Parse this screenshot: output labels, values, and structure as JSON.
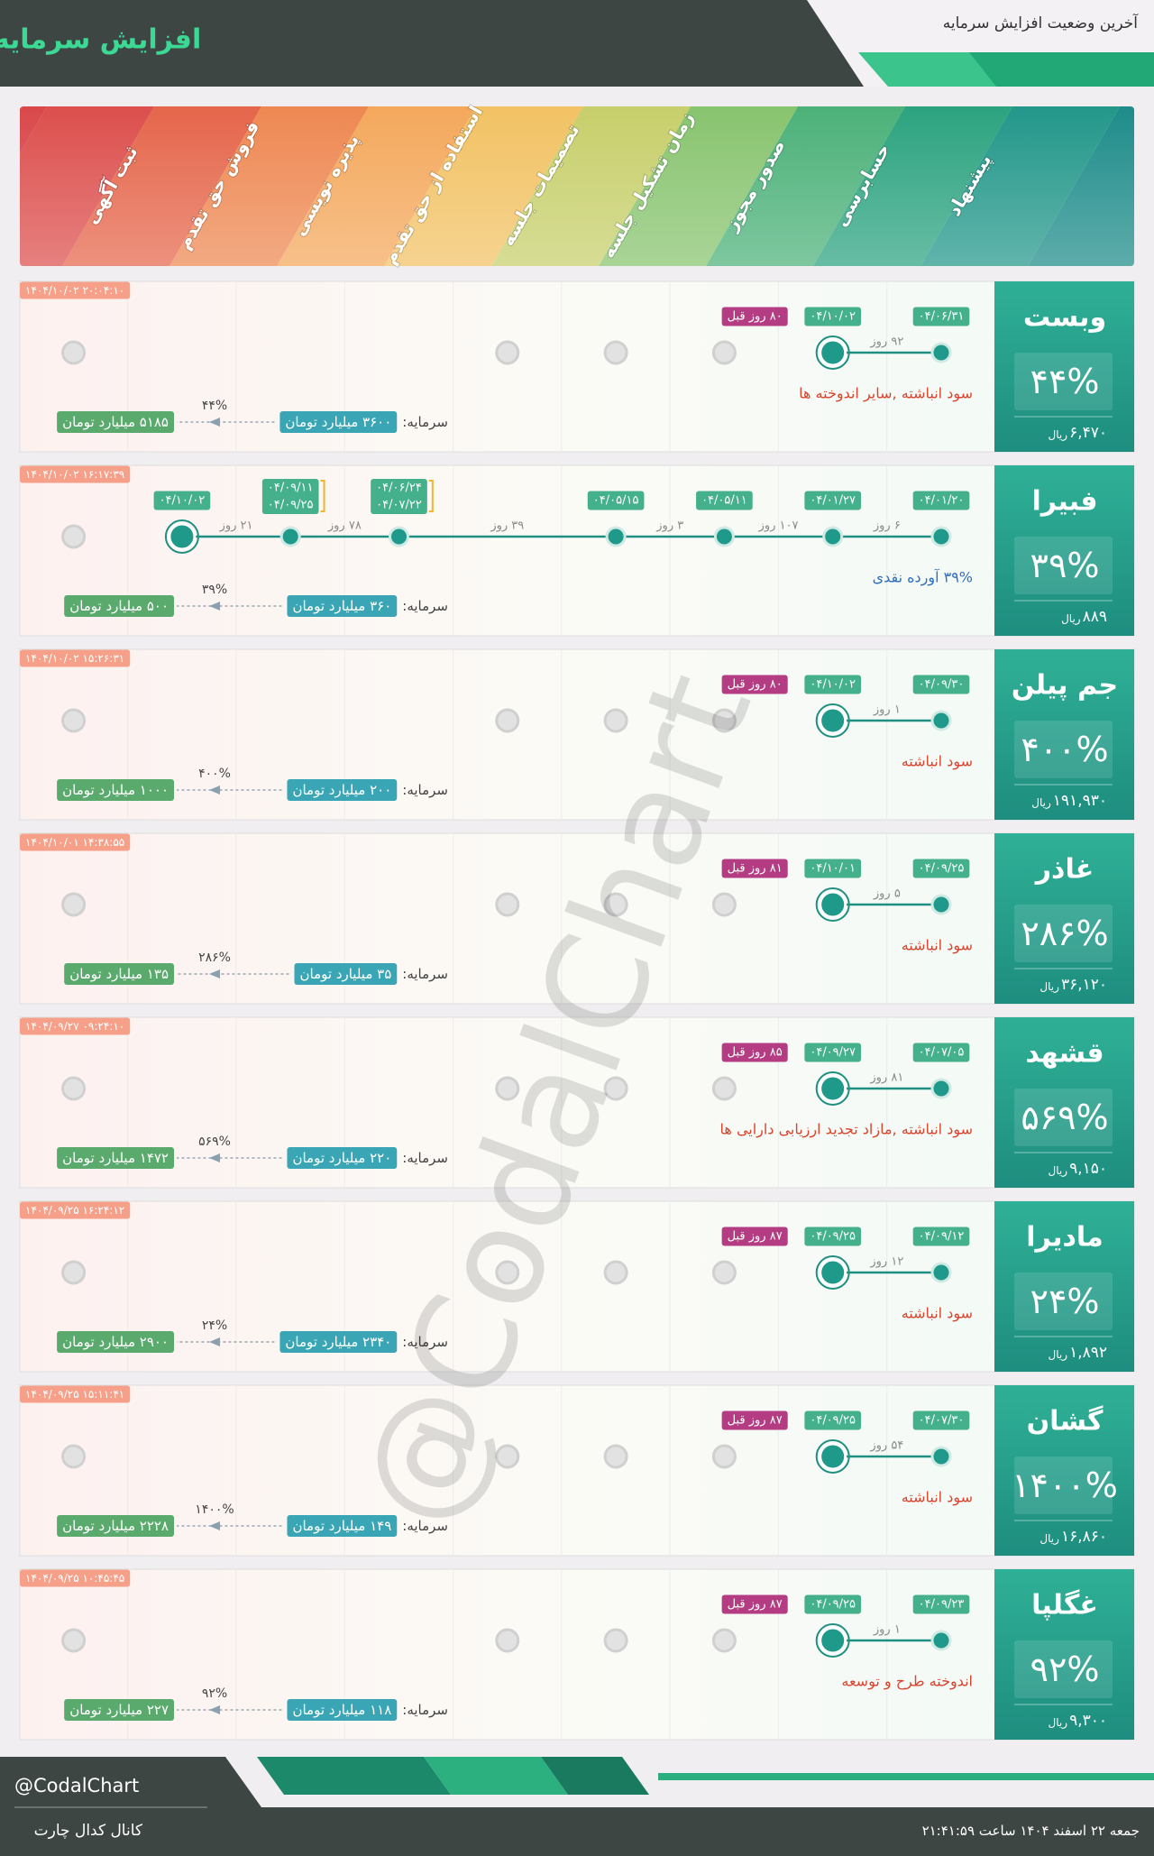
{
  "header": {
    "title": "افزایش سرمایه",
    "subtitle": "آخرین وضعیت افزایش سرمایه"
  },
  "stages": [
    "پیشنهاد",
    "حسابرسی",
    "صدور مجوز",
    "زمان تشکیل جلسه",
    "تصمیمات جلسه",
    "استفاده از حق تقدم",
    "پذیره نویسی",
    "فروش حق تقدم",
    "ثبت آگهی"
  ],
  "capital_label": "سرمایه:",
  "currency": "ریال",
  "cards": [
    {
      "symbol": "وبست",
      "percent": "۴۴%",
      "price": "۶,۴۷۰",
      "timestamp": "۱۴۰۴/۱۰/۰۲ ۲۰:۰۴:۱۰",
      "steps": [
        {
          "dates": [
            "۰۴/۰۶/۳۱"
          ]
        },
        {
          "dates": [
            "۰۴/۱۰/۰۲"
          ],
          "days": "۹۲ روز"
        }
      ],
      "ago": "۸۰ روز قبل",
      "status": "سود انباشته ,سایر اندوخته ها",
      "status_color": "#d9452e",
      "capital": "۳۶۰۰ میلیارد تومان",
      "new_capital": "۵۱۸۵ میلیارد تومان",
      "increase": "۴۴%"
    },
    {
      "symbol": "فبیرا",
      "percent": "۳۹%",
      "price": "۸۸۹",
      "timestamp": "۱۴۰۴/۱۰/۰۲ ۱۶:۱۷:۳۹",
      "steps": [
        {
          "dates": [
            "۰۴/۰۱/۲۰"
          ]
        },
        {
          "dates": [
            "۰۴/۰۱/۲۷"
          ],
          "days": "۶ روز"
        },
        {
          "dates": [
            "۰۴/۰۵/۱۱"
          ],
          "days": "۱۰۷ روز"
        },
        {
          "dates": [
            "۰۴/۰۵/۱۵"
          ],
          "days": "۳ روز"
        },
        null,
        {
          "dates": [
            "۰۴/۰۶/۲۴",
            "۰۴/۰۷/۲۲"
          ],
          "days": "۳۹ روز"
        },
        {
          "dates": [
            "۰۴/۰۹/۱۱",
            "۰۴/۰۹/۲۵"
          ],
          "days": "۷۸ روز"
        },
        {
          "dates": [
            "۰۴/۱۰/۰۲"
          ],
          "days": "۲۱ روز"
        }
      ],
      "status": "۳۹% آورده نقدی",
      "status_color": "#2f6fc0",
      "capital": "۳۶۰ میلیارد تومان",
      "new_capital": "۵۰۰ میلیارد تومان",
      "increase": "۳۹%"
    },
    {
      "symbol": "جم پیلن",
      "percent": "۴۰۰%",
      "price": "۱۹۱,۹۳۰",
      "timestamp": "۱۴۰۴/۱۰/۰۲ ۱۵:۲۶:۳۱",
      "steps": [
        {
          "dates": [
            "۰۴/۰۹/۳۰"
          ]
        },
        {
          "dates": [
            "۰۴/۱۰/۰۲"
          ],
          "days": "۱ روز"
        }
      ],
      "ago": "۸۰ روز قبل",
      "status": "سود انباشته",
      "status_color": "#d9452e",
      "capital": "۲۰۰ میلیارد تومان",
      "new_capital": "۱۰۰۰ میلیارد تومان",
      "increase": "۴۰۰%"
    },
    {
      "symbol": "غاذر",
      "percent": "۲۸۶%",
      "price": "۳۶,۱۲۰",
      "timestamp": "۱۴۰۴/۱۰/۰۱ ۱۴:۳۸:۵۵",
      "steps": [
        {
          "dates": [
            "۰۴/۰۹/۲۵"
          ]
        },
        {
          "dates": [
            "۰۴/۱۰/۰۱"
          ],
          "days": "۵ روز"
        }
      ],
      "ago": "۸۱ روز قبل",
      "status": "سود انباشته",
      "status_color": "#d9452e",
      "capital": "۳۵ میلیارد تومان",
      "new_capital": "۱۳۵ میلیارد تومان",
      "increase": "۲۸۶%"
    },
    {
      "symbol": "قشهد",
      "percent": "۵۶۹%",
      "price": "۹,۱۵۰",
      "timestamp": "۱۴۰۴/۰۹/۲۷ ۰۹:۲۴:۱۰",
      "steps": [
        {
          "dates": [
            "۰۴/۰۷/۰۵"
          ]
        },
        {
          "dates": [
            "۰۴/۰۹/۲۷"
          ],
          "days": "۸۱ روز"
        }
      ],
      "ago": "۸۵ روز قبل",
      "status": "سود انباشته ,مازاد تجدید ارزیابی دارایی ها",
      "status_color": "#d9452e",
      "capital": "۲۲۰ میلیارد تومان",
      "new_capital": "۱۴۷۲ میلیارد تومان",
      "increase": "۵۶۹%"
    },
    {
      "symbol": "مادیرا",
      "percent": "۲۴%",
      "price": "۱,۸۹۲",
      "timestamp": "۱۴۰۴/۰۹/۲۵ ۱۶:۲۴:۱۲",
      "steps": [
        {
          "dates": [
            "۰۴/۰۹/۱۲"
          ]
        },
        {
          "dates": [
            "۰۴/۰۹/۲۵"
          ],
          "days": "۱۲ روز"
        }
      ],
      "ago": "۸۷ روز قبل",
      "status": "سود انباشته",
      "status_color": "#d9452e",
      "capital": "۲۳۴۰ میلیارد تومان",
      "new_capital": "۲۹۰۰ میلیارد تومان",
      "increase": "۲۴%"
    },
    {
      "symbol": "گشان",
      "percent": "۱۴۰۰%",
      "price": "۱۶,۸۶۰",
      "timestamp": "۱۴۰۴/۰۹/۲۵ ۱۵:۱۱:۴۱",
      "steps": [
        {
          "dates": [
            "۰۴/۰۷/۳۰"
          ]
        },
        {
          "dates": [
            "۰۴/۰۹/۲۵"
          ],
          "days": "۵۴ روز"
        }
      ],
      "ago": "۸۷ روز قبل",
      "status": "سود انباشته",
      "status_color": "#d9452e",
      "capital": "۱۴۹ میلیارد تومان",
      "new_capital": "۲۲۲۸ میلیارد تومان",
      "increase": "۱۴۰۰%"
    },
    {
      "symbol": "غگلپا",
      "percent": "۹۲%",
      "price": "۹,۳۰۰",
      "timestamp": "۱۴۰۴/۰۹/۲۵ ۱۰:۴۵:۴۵",
      "steps": [
        {
          "dates": [
            "۰۴/۰۹/۲۳"
          ]
        },
        {
          "dates": [
            "۰۴/۰۹/۲۵"
          ],
          "days": "۱ روز"
        }
      ],
      "ago": "۸۷ روز قبل",
      "status": "اندوخته طرح و توسعه",
      "status_color": "#d9452e",
      "capital": "۱۱۸ میلیارد تومان",
      "new_capital": "۲۲۷ میلیارد تومان",
      "increase": "۹۲%"
    }
  ],
  "watermark": "@CodalChart",
  "footer": {
    "handle": "@CodalChart",
    "channel": "کانال کدال چارت",
    "datetime": "جمعه ۲۲ اسفند ۱۴۰۴ ساعت ۲۱:۴۱:۵۹"
  }
}
